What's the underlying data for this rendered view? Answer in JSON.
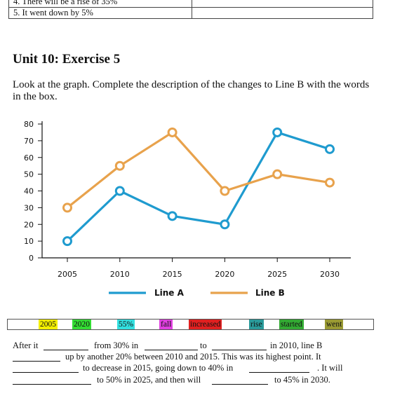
{
  "top_table": [
    {
      "text": "4. There will be a rise of 35%"
    },
    {
      "text": "5. It went down by 5%"
    }
  ],
  "heading": "Unit 10: Exercise 5",
  "instructions": "Look at the graph. Complete the description of the changes to Line B with the words in the box.",
  "chart_data": {
    "type": "line",
    "x": [
      2005,
      2010,
      2015,
      2020,
      2025,
      2030
    ],
    "series": [
      {
        "name": "Line A",
        "values": [
          10,
          40,
          25,
          20,
          75,
          65
        ],
        "color": "#1f9bcf"
      },
      {
        "name": "Line B",
        "values": [
          30,
          55,
          75,
          40,
          50,
          45
        ],
        "color": "#e8a24c"
      }
    ],
    "ylim": [
      0,
      80
    ],
    "yticks": [
      0,
      10,
      20,
      30,
      40,
      50,
      60,
      70,
      80
    ],
    "title": "",
    "xlabel": "",
    "ylabel": "",
    "grid": false,
    "legend": "bottom"
  },
  "word_box": [
    {
      "text": "2005",
      "bg": "#f4f000"
    },
    {
      "text": "2020",
      "bg": "#33dd33"
    },
    {
      "text": "55%",
      "bg": "#33e0e0"
    },
    {
      "text": "fall",
      "bg": "#e040e0"
    },
    {
      "text": "increased",
      "bg": "#e02020"
    },
    {
      "text": "rise",
      "bg": "#2a9a9a"
    },
    {
      "text": "started",
      "bg": "#33aa33"
    },
    {
      "text": "went",
      "bg": "#9a9a33"
    }
  ],
  "gap_text": {
    "line1": {
      "a": "After it",
      "b": "from 30% in",
      "c": "to",
      "d": "in 2010, line B"
    },
    "line2": {
      "a": "up by another 20% between 2010 and 2015. This was its highest point. It"
    },
    "line3": {
      "a": "to decrease in 2015, going down to 40% in",
      "b": ". It will"
    },
    "line4": {
      "a": "to 50% in 2025, and then will",
      "b": "to 45% in 2030."
    }
  }
}
